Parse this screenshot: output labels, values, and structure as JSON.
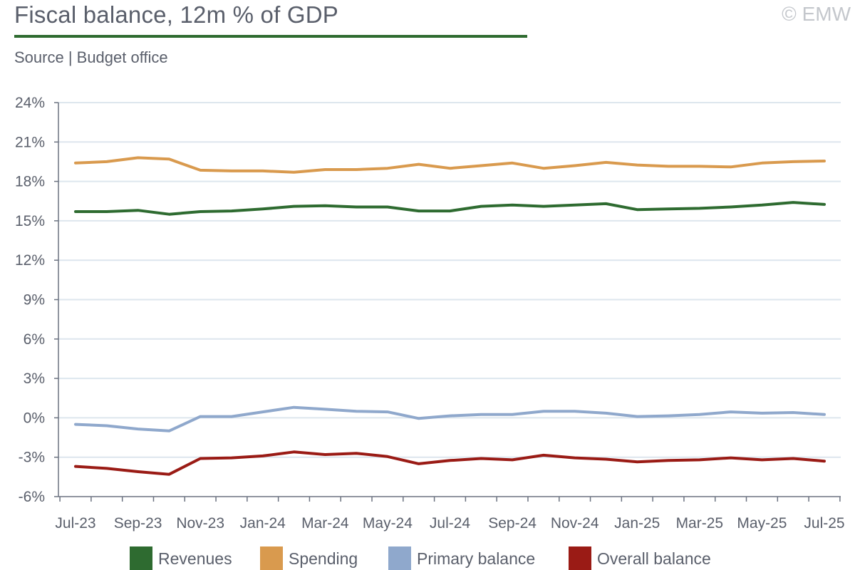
{
  "header": {
    "title": "Fiscal balance, 12m % of GDP",
    "source": "Source | Budget office",
    "copyright": "© EMW"
  },
  "colors": {
    "title_rule": "#2e6b30",
    "grid": "#dde6ee",
    "axis": "#6b7280"
  },
  "chart_data": {
    "type": "line",
    "title": "Fiscal balance, 12m % of GDP",
    "xlabel": "",
    "ylabel": "",
    "x": [
      "Jul-23",
      "Aug-23",
      "Sep-23",
      "Oct-23",
      "Nov-23",
      "Dec-23",
      "Jan-24",
      "Feb-24",
      "Mar-24",
      "Apr-24",
      "May-24",
      "Jun-24",
      "Jul-24",
      "Aug-24",
      "Sep-24",
      "Oct-24",
      "Nov-24",
      "Dec-24",
      "Jan-25",
      "Feb-25",
      "Mar-25",
      "Apr-25",
      "May-25",
      "Jun-25",
      "Jul-25"
    ],
    "x_tick_labels": [
      "Jul-23",
      "Sep-23",
      "Nov-23",
      "Jan-24",
      "Mar-24",
      "May-24",
      "Jul-24",
      "Sep-24",
      "Nov-24",
      "Jan-25",
      "Mar-25",
      "May-25",
      "Jul-25"
    ],
    "ylim": [
      -6,
      24
    ],
    "y_ticks": [
      -6,
      -3,
      0,
      3,
      6,
      9,
      12,
      15,
      18,
      21,
      24
    ],
    "y_tick_suffix": "%",
    "grid": "horizontal",
    "legend_position": "bottom",
    "series": [
      {
        "name": "Revenues",
        "color": "#2e6b30",
        "values": [
          15.7,
          15.7,
          15.8,
          15.5,
          15.7,
          15.75,
          15.9,
          16.1,
          16.15,
          16.05,
          16.05,
          15.75,
          15.75,
          16.1,
          16.2,
          16.1,
          16.2,
          16.3,
          15.85,
          15.9,
          15.95,
          16.05,
          16.2,
          16.4,
          16.25
        ]
      },
      {
        "name": "Spending",
        "color": "#d99a4e",
        "values": [
          19.4,
          19.5,
          19.8,
          19.7,
          18.85,
          18.8,
          18.8,
          18.7,
          18.9,
          18.9,
          19.0,
          19.3,
          19.0,
          19.2,
          19.4,
          19.0,
          19.2,
          19.45,
          19.25,
          19.15,
          19.15,
          19.1,
          19.4,
          19.5,
          19.55
        ]
      },
      {
        "name": "Primary balance",
        "color": "#8fa8cc",
        "values": [
          -0.5,
          -0.6,
          -0.85,
          -1.0,
          0.1,
          0.1,
          0.45,
          0.8,
          0.65,
          0.5,
          0.45,
          -0.05,
          0.15,
          0.25,
          0.25,
          0.5,
          0.5,
          0.35,
          0.1,
          0.15,
          0.25,
          0.45,
          0.35,
          0.4,
          0.25
        ]
      },
      {
        "name": "Overall balance",
        "color": "#9a1b15",
        "values": [
          -3.7,
          -3.85,
          -4.1,
          -4.3,
          -3.1,
          -3.05,
          -2.9,
          -2.6,
          -2.8,
          -2.7,
          -2.95,
          -3.5,
          -3.25,
          -3.1,
          -3.2,
          -2.85,
          -3.05,
          -3.15,
          -3.35,
          -3.25,
          -3.2,
          -3.05,
          -3.2,
          -3.1,
          -3.3
        ]
      }
    ]
  }
}
